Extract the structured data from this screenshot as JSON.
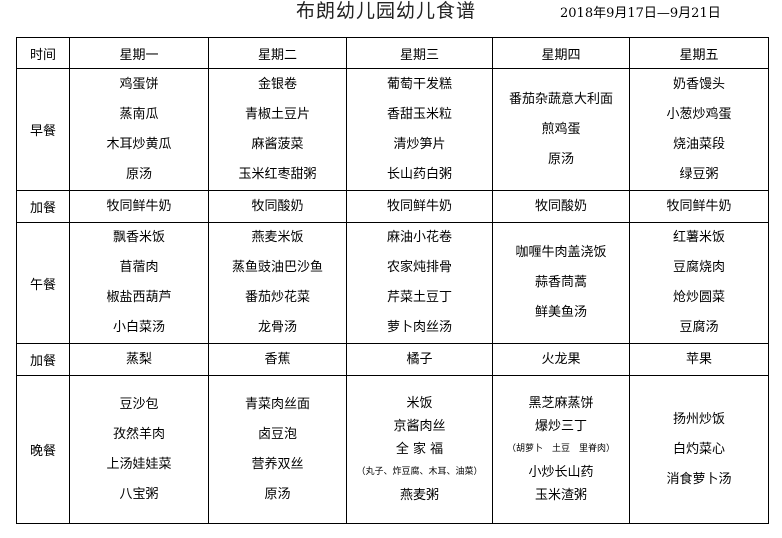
{
  "title": "布朗幼儿园幼儿食谱",
  "date_range": "2018年9月17日—9月21日",
  "header": {
    "time": "时间",
    "days": [
      "星期一",
      "星期二",
      "星期三",
      "星期四",
      "星期五"
    ]
  },
  "rows": [
    {
      "label": "早餐",
      "cells": [
        [
          "鸡蛋饼",
          "蒸南瓜",
          "木耳炒黄瓜",
          "原汤"
        ],
        [
          "金银卷",
          "青椒土豆片",
          "麻酱菠菜",
          "玉米红枣甜粥"
        ],
        [
          "葡萄干发糕",
          "香甜玉米粒",
          "清炒笋片",
          "长山药白粥"
        ],
        [
          "番茄杂蔬意大利面",
          "煎鸡蛋",
          "原汤"
        ],
        [
          "奶香馒头",
          "小葱炒鸡蛋",
          "烧油菜段",
          "绿豆粥"
        ]
      ]
    },
    {
      "label": "加餐",
      "cells": [
        [
          "牧同鲜牛奶"
        ],
        [
          "牧同酸奶"
        ],
        [
          "牧同鲜牛奶"
        ],
        [
          "牧同酸奶"
        ],
        [
          "牧同鲜牛奶"
        ]
      ]
    },
    {
      "label": "午餐",
      "cells": [
        [
          "飘香米饭",
          "苜蓿肉",
          "椒盐西葫芦",
          "小白菜汤"
        ],
        [
          "燕麦米饭",
          "蒸鱼豉油巴沙鱼",
          "番茄炒花菜",
          "龙骨汤"
        ],
        [
          "麻油小花卷",
          "农家炖排骨",
          "芹菜土豆丁",
          "萝卜肉丝汤"
        ],
        [
          "咖喱牛肉盖浇饭",
          "蒜香茼蒿",
          "鲜美鱼汤"
        ],
        [
          "红薯米饭",
          "豆腐烧肉",
          "炝炒圆菜",
          "豆腐汤"
        ]
      ]
    },
    {
      "label": "加餐",
      "cells": [
        [
          "蒸梨"
        ],
        [
          "香蕉"
        ],
        [
          "橘子"
        ],
        [
          "火龙果"
        ],
        [
          "苹果"
        ]
      ]
    },
    {
      "label": "晚餐",
      "cells": [
        [
          "豆沙包",
          "孜然羊肉",
          "上汤娃娃菜",
          "八宝粥"
        ],
        [
          "青菜肉丝面",
          "卤豆泡",
          "营养双丝",
          "原汤"
        ],
        [
          "米饭",
          "京酱肉丝",
          "全 家 福",
          "（丸子、炸豆腐、木耳、油菜）",
          "燕麦粥"
        ],
        [
          "黑芝麻蒸饼",
          "爆炒三丁",
          "（胡萝卜　土豆　里脊肉）",
          "小炒长山药",
          "玉米渣粥"
        ],
        [
          "扬州炒饭",
          "白灼菜心",
          "消食萝卜汤"
        ]
      ]
    }
  ]
}
